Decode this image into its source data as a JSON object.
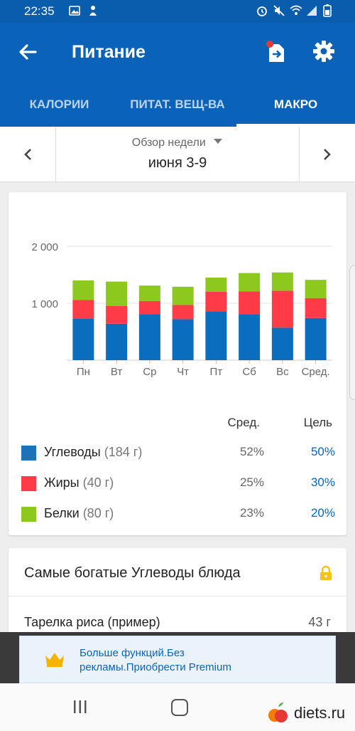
{
  "status_bar": {
    "time": "22:35",
    "left_icons": [
      "image-icon",
      "person-icon"
    ],
    "right_icons": [
      "alarm-icon",
      "mute-icon",
      "wifi-icon",
      "signal-icon",
      "battery-icon"
    ]
  },
  "app_bar": {
    "title": "Питание",
    "back_icon": "arrow-back-icon",
    "export_icon": "export-icon",
    "settings_icon": "gear-icon"
  },
  "tabs": [
    {
      "label": "КАЛОРИИ",
      "active": false
    },
    {
      "label": "ПИТАТ. ВЕЩ-ВА",
      "active": false
    },
    {
      "label": "МАКРО",
      "active": true
    }
  ],
  "week_selector": {
    "overview_label": "Обзор недели",
    "range": "июня 3-9"
  },
  "chart_data": {
    "type": "bar",
    "stacked": true,
    "categories": [
      "Пн",
      "Вт",
      "Ср",
      "Чт",
      "Пт",
      "Сб",
      "Вс",
      "Сред."
    ],
    "series": [
      {
        "name": "Углеводы",
        "color": "#0a6dbd",
        "values": [
          730,
          640,
          810,
          720,
          860,
          810,
          570,
          740
        ]
      },
      {
        "name": "Жиры",
        "color": "#ff3b47",
        "values": [
          330,
          310,
          230,
          250,
          340,
          400,
          650,
          350
        ]
      },
      {
        "name": "Белки",
        "color": "#8dc81e",
        "values": [
          340,
          430,
          270,
          320,
          250,
          320,
          320,
          320
        ]
      }
    ],
    "y_ticks": [
      1000,
      2000
    ],
    "y_tick_labels": [
      "1 000",
      "2 000"
    ],
    "ylim": [
      0,
      2000
    ],
    "grid": true
  },
  "macros_table": {
    "avg_header": "Сред.",
    "goal_header": "Цель",
    "rows": [
      {
        "name": "Углеводы",
        "grams": "(184 г)",
        "avg": "52%",
        "goal": "50%",
        "color": "#1e73b8"
      },
      {
        "name": "Жиры",
        "grams": "(40 г)",
        "avg": "25%",
        "goal": "30%",
        "color": "#ff3b47"
      },
      {
        "name": "Белки",
        "grams": "(80 г)",
        "avg": "23%",
        "goal": "20%",
        "color": "#8dc81e"
      }
    ]
  },
  "rich_foods": {
    "title": "Самые богатые Углеводы блюда",
    "lock_icon": "lock-icon",
    "items": [
      {
        "name": "Тарелка риса (пример)",
        "amount": "43 г"
      }
    ]
  },
  "premium_banner": {
    "text": "Больше функций.Без рекламы.Приобрести Premium",
    "icon": "crown-icon"
  },
  "watermark": {
    "text": "diets.ru"
  }
}
